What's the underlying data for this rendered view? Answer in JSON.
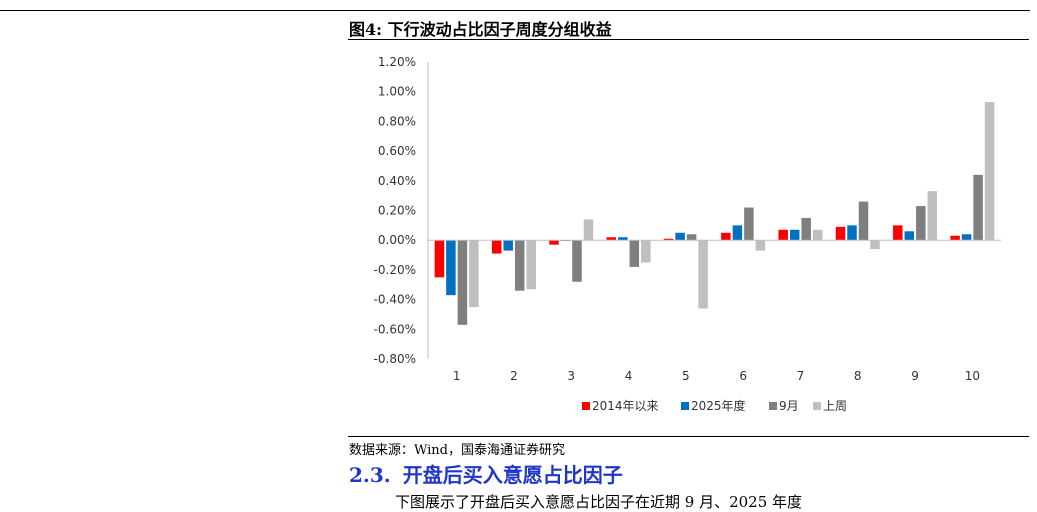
{
  "figure": {
    "title": "图4:  下行波动占比因子周度分组收益",
    "source": "数据来源：Wind，国泰海通证券研究"
  },
  "section": {
    "number": "2.3.",
    "title": "开盘后买入意愿占比因子",
    "partial_line": "下图展示了开盘后买入意愿占比因子在近期 9 月、2025 年度"
  },
  "chart_data": {
    "type": "bar",
    "categories": [
      "1",
      "2",
      "3",
      "4",
      "5",
      "6",
      "7",
      "8",
      "9",
      "10"
    ],
    "ylim": [
      -0.8,
      1.2
    ],
    "yticks": [
      -0.8,
      -0.6,
      -0.4,
      -0.2,
      0.0,
      0.2,
      0.4,
      0.6,
      0.8,
      1.0,
      1.2
    ],
    "y_unit": "%",
    "grid": false,
    "legend_position": "bottom",
    "series": [
      {
        "name": "2014年以来",
        "color": "#ff0000",
        "values": [
          -0.25,
          -0.09,
          -0.03,
          0.02,
          0.01,
          0.05,
          0.07,
          0.09,
          0.1,
          0.03
        ]
      },
      {
        "name": "2025年度",
        "color": "#0070c0",
        "values": [
          -0.37,
          -0.07,
          0.0,
          0.02,
          0.05,
          0.1,
          0.07,
          0.1,
          0.06,
          0.04
        ]
      },
      {
        "name": "9月",
        "color": "#7f7f7f",
        "values": [
          -0.57,
          -0.34,
          -0.28,
          -0.18,
          0.04,
          0.22,
          0.15,
          0.26,
          0.23,
          0.44
        ]
      },
      {
        "name": "上周",
        "color": "#bfbfbf",
        "values": [
          -0.45,
          -0.33,
          0.14,
          -0.15,
          -0.46,
          -0.07,
          0.07,
          -0.06,
          0.33,
          0.93
        ]
      }
    ]
  }
}
